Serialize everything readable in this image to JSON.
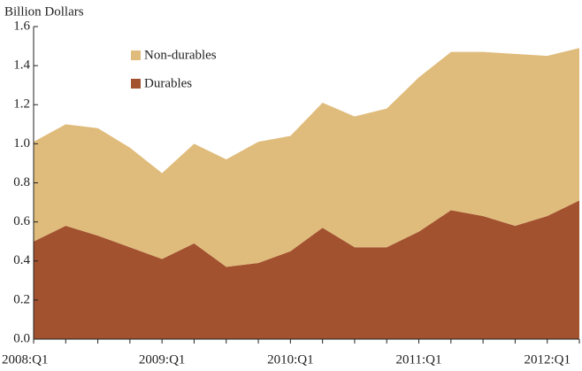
{
  "chart_data": {
    "type": "stacked_area",
    "y_label": "Billion Dollars",
    "categories": [
      "2008:Q1",
      null,
      null,
      null,
      "2009:Q1",
      null,
      null,
      null,
      "2010:Q1",
      null,
      null,
      null,
      "2011:Q1",
      null,
      null,
      null,
      "2012:Q1",
      null
    ],
    "series": [
      {
        "name": "Durables",
        "color": "#a3522f",
        "values": [
          0.5,
          0.58,
          0.53,
          0.47,
          0.41,
          0.49,
          0.37,
          0.39,
          0.45,
          0.57,
          0.47,
          0.47,
          0.55,
          0.66,
          0.63,
          0.58,
          0.63,
          0.71
        ]
      },
      {
        "name": "Non-durables",
        "color": "#e0bc7c",
        "values": [
          0.51,
          0.52,
          0.55,
          0.51,
          0.44,
          0.51,
          0.55,
          0.62,
          0.59,
          0.64,
          0.67,
          0.71,
          0.79,
          0.81,
          0.84,
          0.88,
          0.82,
          0.78
        ]
      }
    ],
    "ylim": [
      0,
      1.6
    ],
    "yticks": [
      {
        "value": 0,
        "label": "0.0"
      },
      0.2,
      0.4,
      0.6,
      0.8,
      {
        "value": 1,
        "label": "1.0"
      },
      1.2,
      1.4,
      1.6
    ]
  }
}
